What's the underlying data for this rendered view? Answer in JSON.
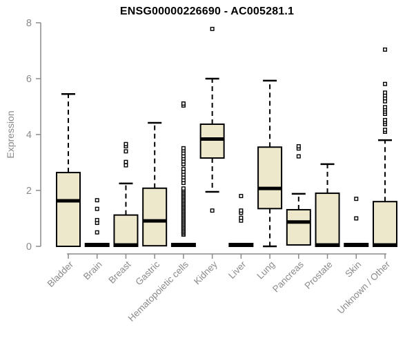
{
  "title": "ENSG00000226690 - AC005281.1",
  "colors": {
    "box_fill": "#EDE8CC",
    "box_border": "#000000",
    "median": "#000000",
    "axis": "#8a8a8a",
    "tick_text": "#8a8a8a",
    "title_text": "#000000",
    "outlier_stroke": "#000000",
    "outlier_fill": "#ffffff"
  },
  "chart_data": {
    "type": "boxplot",
    "title": "ENSG00000226690 - AC005281.1",
    "xlabel": "",
    "ylabel": "Expression",
    "ylim": [
      0,
      8
    ],
    "yticks": [
      0,
      2,
      4,
      6,
      8
    ],
    "grid": false,
    "legend": "none",
    "categories": [
      "Bladder",
      "Brain",
      "Breast",
      "Gastric",
      "Hematopoietic cells",
      "Kidney",
      "Liver",
      "Lung",
      "Pancreas",
      "Prostate",
      "Skin",
      "Unknown / Other"
    ],
    "series": [
      {
        "label": "Bladder",
        "low": 0,
        "q1": 0,
        "median": 1.63,
        "q3": 2.64,
        "high": 5.45,
        "outliers": []
      },
      {
        "label": "Brain",
        "low": 0,
        "q1": 0,
        "median": 0.05,
        "q3": 0.1,
        "high": 0.1,
        "outliers": [
          0.5,
          0.84,
          0.94,
          1.34,
          1.65
        ]
      },
      {
        "label": "Breast",
        "low": 0,
        "q1": 0,
        "median": 0.05,
        "q3": 1.12,
        "high": 2.25,
        "outliers": [
          2.9,
          3.02,
          3.4,
          3.58,
          3.66
        ]
      },
      {
        "label": "Gastric",
        "low": 0.02,
        "q1": 0.02,
        "median": 0.91,
        "q3": 2.08,
        "high": 4.42,
        "outliers": []
      },
      {
        "label": "Hematopoietic cells",
        "low": 0,
        "q1": 0,
        "median": 0.05,
        "q3": 0.1,
        "high": 0.1,
        "outliers": [
          0.42,
          0.47,
          0.52,
          0.57,
          0.62,
          0.67,
          0.72,
          0.77,
          0.82,
          0.87,
          0.92,
          0.97,
          1.02,
          1.07,
          1.12,
          1.17,
          1.22,
          1.27,
          1.32,
          1.37,
          1.42,
          1.47,
          1.52,
          1.57,
          1.62,
          1.67,
          1.72,
          1.77,
          1.82,
          1.87,
          1.92,
          1.97,
          2.02,
          2.07,
          2.27,
          2.37,
          2.47,
          2.57,
          2.67,
          2.77,
          2.94,
          3.04,
          3.14,
          3.23,
          3.33,
          3.43,
          3.51,
          5.04,
          5.11
        ]
      },
      {
        "label": "Kidney",
        "low": 1.95,
        "q1": 3.16,
        "median": 3.84,
        "q3": 4.37,
        "high": 6.0,
        "outliers": [
          1.28,
          7.78
        ]
      },
      {
        "label": "Liver",
        "low": 0,
        "q1": 0,
        "median": 0.05,
        "q3": 0.1,
        "high": 0.1,
        "outliers": [
          0.92,
          1.02,
          1.2,
          1.28,
          1.8
        ]
      },
      {
        "label": "Lung",
        "low": 0,
        "q1": 1.35,
        "median": 2.07,
        "q3": 3.55,
        "high": 5.93,
        "outliers": []
      },
      {
        "label": "Pancreas",
        "low": 0.05,
        "q1": 0.05,
        "median": 0.87,
        "q3": 1.31,
        "high": 1.88,
        "outliers": [
          3.22,
          3.5,
          3.58
        ]
      },
      {
        "label": "Prostate",
        "low": 0,
        "q1": 0,
        "median": 0.05,
        "q3": 1.9,
        "high": 2.94,
        "outliers": []
      },
      {
        "label": "Skin",
        "low": 0,
        "q1": 0,
        "median": 0.05,
        "q3": 0.1,
        "high": 0.1,
        "outliers": [
          1.0,
          1.7
        ]
      },
      {
        "label": "Unknown / Other",
        "low": 0,
        "q1": 0,
        "median": 0.05,
        "q3": 1.6,
        "high": 3.8,
        "outliers": [
          4.1,
          4.17,
          4.37,
          4.45,
          4.52,
          4.74,
          4.82,
          4.9,
          4.98,
          5.19,
          5.3,
          5.4,
          5.5,
          5.81,
          7.04
        ]
      }
    ]
  }
}
